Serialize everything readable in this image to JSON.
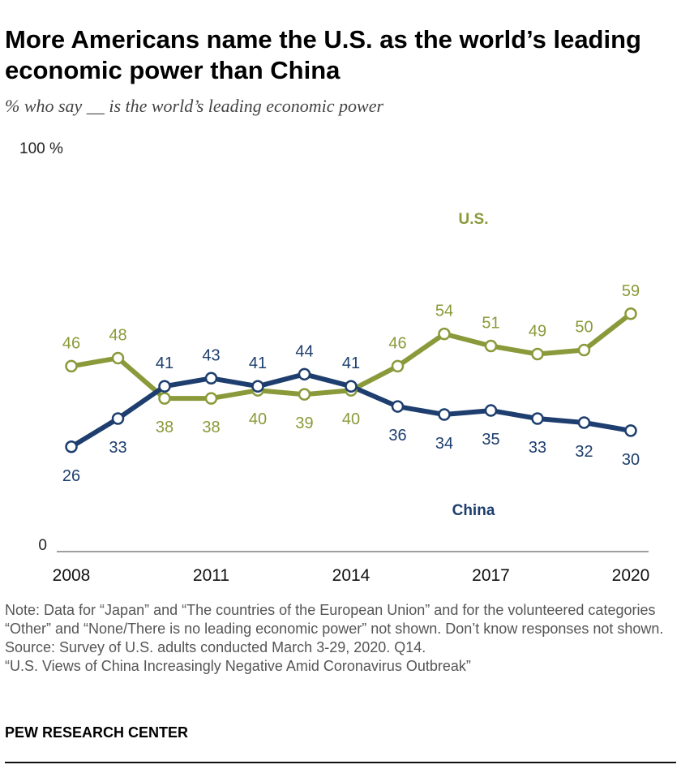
{
  "title": "More Americans name the U.S. as the world’s leading economic power than China",
  "subtitle": "% who say __ is the world’s leading economic power",
  "notes": {
    "note": "Note: Data for “Japan” and “The countries of the European Union” and for the volunteered categories “Other” and “None/There is no leading economic power” not shown. Don’t know responses not shown.",
    "source": "Source: Survey of U.S. adults conducted March 3-29, 2020. Q14.",
    "report": "“U.S. Views of China Increasingly Negative Amid Coronavirus Outbreak”"
  },
  "brand": "PEW RESEARCH CENTER",
  "colors": {
    "us": "#8a9a3a",
    "china": "#1d3e6e"
  },
  "chart_data": {
    "type": "line",
    "title": "More Americans name the U.S. as the world’s leading economic power than China",
    "ylabel": "% who say __ is the world’s leading economic power",
    "xlabel": "",
    "ylim": [
      0,
      100
    ],
    "y_tick_labels": [
      "0",
      "100 %"
    ],
    "x": [
      2008,
      2009,
      2010,
      2011,
      2012,
      2013,
      2014,
      2015,
      2016,
      2017,
      2018,
      2019,
      2020
    ],
    "x_tick_labels": [
      "2008",
      "2011",
      "2014",
      "2017",
      "2020"
    ],
    "x_tick_years": [
      2008,
      2011,
      2014,
      2017,
      2020
    ],
    "series": [
      {
        "name": "U.S.",
        "color": "#8a9a3a",
        "values": [
          46,
          48,
          38,
          38,
          40,
          39,
          40,
          46,
          54,
          51,
          49,
          50,
          59
        ],
        "label_position": [
          "above",
          "above",
          "below",
          "below",
          "below",
          "below",
          "below",
          "above",
          "above",
          "above",
          "above",
          "above",
          "above"
        ]
      },
      {
        "name": "China",
        "color": "#1d3e6e",
        "values": [
          26,
          33,
          41,
          43,
          41,
          44,
          41,
          36,
          34,
          35,
          33,
          32,
          30
        ],
        "label_position": [
          "below",
          "below",
          "above",
          "above",
          "above",
          "above",
          "above",
          "below",
          "below",
          "below",
          "below",
          "below",
          "below"
        ]
      }
    ]
  }
}
